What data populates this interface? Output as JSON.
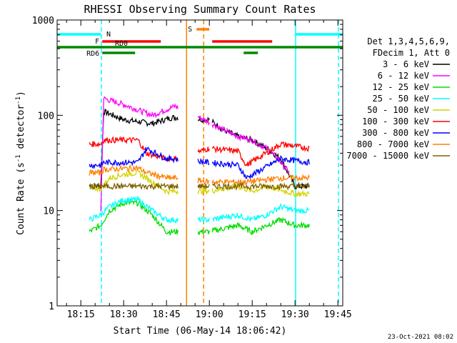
{
  "chart_data": {
    "type": "line",
    "title": "RHESSI Observing Summary Count Rates",
    "xlabel": "Start Time (06-May-14 18:06:42)",
    "ylabel": "Count Rate (s⁻¹ detector⁻¹)",
    "ylabel_main": "Count Rate (s",
    "ylabel_sup1": "-1",
    "ylabel_mid": " detector",
    "ylabel_sup2": "-1",
    "ylabel_end": ")",
    "x_units": "minutes since 18:00",
    "xlim": [
      6.7,
      106.7
    ],
    "ylim": [
      1,
      1000
    ],
    "yscale": "log",
    "x_ticks": [
      {
        "value": 15,
        "label": "18:15"
      },
      {
        "value": 30,
        "label": "18:30"
      },
      {
        "value": 45,
        "label": "18:45"
      },
      {
        "value": 60,
        "label": "19:00"
      },
      {
        "value": 75,
        "label": "19:15"
      },
      {
        "value": 90,
        "label": "19:30"
      },
      {
        "value": 105,
        "label": "19:45"
      }
    ],
    "y_ticks": [
      {
        "value": 1,
        "label": "1"
      },
      {
        "value": 10,
        "label": "10"
      },
      {
        "value": 100,
        "label": "100"
      },
      {
        "value": 1000,
        "label": "1000"
      }
    ],
    "legend": {
      "placement": "right",
      "header1": "Det 1,3,4,5,6,9,",
      "header2": "FDecim 1, Att 0"
    },
    "series": [
      {
        "name": "3 - 6 keV",
        "color": "#000000",
        "x": [
          18,
          22,
          23,
          30,
          40,
          47,
          48,
          60,
          65,
          70,
          75,
          80,
          85,
          90,
          95
        ],
        "y": [
          18,
          18,
          110,
          90,
          82,
          95,
          95,
          90,
          70,
          60,
          55,
          45,
          35,
          18,
          18
        ]
      },
      {
        "name": "6 - 12 keV",
        "color": "#ff00ff",
        "x": [
          22,
          23,
          30,
          40,
          45,
          48,
          60,
          65,
          70,
          75,
          80,
          84,
          88
        ],
        "y": [
          10,
          150,
          130,
          100,
          115,
          125,
          85,
          70,
          60,
          55,
          45,
          35,
          25
        ]
      },
      {
        "name": "12 - 25 keV",
        "color": "#00dd00",
        "x": [
          18,
          22,
          25,
          30,
          35,
          40,
          45,
          48,
          60,
          70,
          75,
          80,
          85,
          90,
          95
        ],
        "y": [
          6,
          7,
          10,
          12,
          12,
          9,
          6,
          6,
          6,
          7,
          6,
          7,
          8,
          7,
          7
        ]
      },
      {
        "name": "25 - 50 keV",
        "color": "#00ffff",
        "x": [
          18,
          22,
          25,
          30,
          35,
          40,
          45,
          48,
          60,
          70,
          75,
          80,
          85,
          90,
          95
        ],
        "y": [
          8,
          9,
          11,
          13,
          13,
          10,
          8,
          8,
          8,
          9,
          8,
          9,
          11,
          10,
          10
        ]
      },
      {
        "name": "50 - 100 keV",
        "color": "#d4d400",
        "x": [
          18,
          22,
          25,
          30,
          35,
          40,
          45,
          48,
          60,
          70,
          75,
          80,
          90,
          95
        ],
        "y": [
          17,
          17,
          22,
          24,
          25,
          20,
          16,
          16,
          16,
          18,
          16,
          18,
          15,
          15
        ]
      },
      {
        "name": "100 - 300 keV",
        "color": "#ff0000",
        "x": [
          18,
          22,
          23,
          35,
          38,
          45,
          48,
          60,
          70,
          73,
          85,
          95
        ],
        "y": [
          50,
          50,
          55,
          55,
          40,
          35,
          35,
          45,
          42,
          30,
          50,
          45
        ]
      },
      {
        "name": "300 - 800 keV",
        "color": "#0000ff",
        "x": [
          18,
          22,
          23,
          35,
          38,
          45,
          48,
          60,
          70,
          73,
          85,
          95
        ],
        "y": [
          30,
          30,
          32,
          32,
          45,
          35,
          35,
          32,
          30,
          22,
          35,
          32
        ]
      },
      {
        "name": "800 - 7000 keV",
        "color": "#ff8000",
        "x": [
          18,
          22,
          23,
          35,
          38,
          45,
          48,
          60,
          70,
          73,
          85,
          95
        ],
        "y": [
          25,
          25,
          27,
          28,
          25,
          22,
          22,
          20,
          20,
          20,
          22,
          22
        ]
      },
      {
        "name": "7000 - 15000 keV",
        "color": "#806000",
        "x": [
          18,
          22,
          25,
          35,
          45,
          48,
          60,
          75,
          85,
          95
        ],
        "y": [
          18,
          18,
          18,
          18,
          18,
          18,
          18,
          18,
          18,
          18
        ]
      }
    ],
    "flag_bars": [
      {
        "label": "N",
        "color": "#00ffff",
        "segments": [
          [
            6.7,
            22
          ],
          [
            90,
            106.7
          ]
        ]
      },
      {
        "label": "S",
        "color": "#ff8000",
        "segments": [
          [
            55.5,
            60
          ]
        ]
      },
      {
        "label": "F",
        "color": "#ff0000",
        "segments": [
          [
            22.5,
            43
          ],
          [
            61,
            82
          ]
        ]
      },
      {
        "label": "RD0",
        "color": "#008800",
        "segments": [
          [
            6.7,
            106.7
          ]
        ]
      },
      {
        "label": "RD6",
        "color": "#008800",
        "segments": [
          [
            22.5,
            34
          ],
          [
            72,
            77
          ]
        ]
      }
    ],
    "vertical_lines": [
      {
        "x": 22.2,
        "color": "#00ffff",
        "style": "dashed"
      },
      {
        "x": 90.2,
        "color": "#00ffff",
        "style": "solid"
      },
      {
        "x": 105.2,
        "color": "#00ffff",
        "style": "dashed"
      },
      {
        "x": 52,
        "color": "#ff8000",
        "style": "solid"
      },
      {
        "x": 58,
        "color": "#ff8000",
        "style": "dashed"
      }
    ],
    "data_gaps": [
      [
        7,
        18
      ],
      [
        49,
        56
      ],
      [
        60,
        61
      ],
      [
        96,
        106.7
      ]
    ],
    "timestamp": "23-Oct-2021 08:02"
  }
}
